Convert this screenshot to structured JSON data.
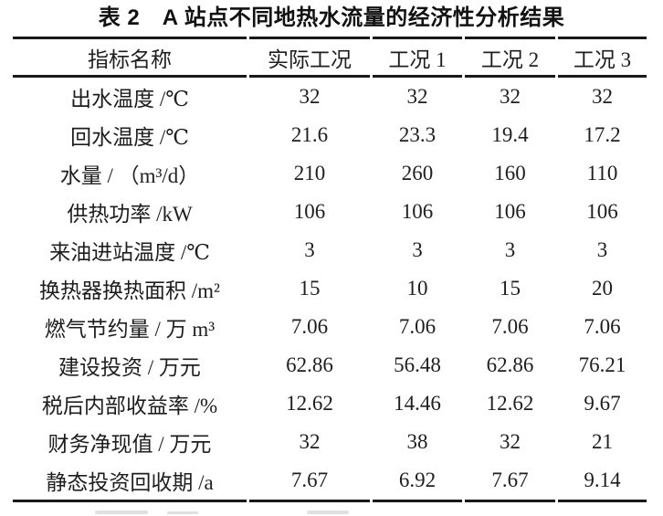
{
  "page": {
    "title": "表 2　A 站点不同地热水流量的经济性分析结果"
  },
  "table": {
    "headers": [
      "指标名称",
      "实际工况",
      "工况 1",
      "工况 2",
      "工况 3"
    ],
    "rows": [
      {
        "label": "出水温度 /℃",
        "values": [
          "32",
          "32",
          "32",
          "32"
        ]
      },
      {
        "label": "回水温度 /℃",
        "values": [
          "21.6",
          "23.3",
          "19.4",
          "17.2"
        ]
      },
      {
        "label": "水量 / （m³/d）",
        "values": [
          "210",
          "260",
          "160",
          "110"
        ]
      },
      {
        "label": "供热功率 /kW",
        "values": [
          "106",
          "106",
          "106",
          "106"
        ]
      },
      {
        "label": "来油进站温度 /℃",
        "values": [
          "3",
          "3",
          "3",
          "3"
        ]
      },
      {
        "label": "换热器换热面积 /m²",
        "values": [
          "15",
          "10",
          "15",
          "20"
        ]
      },
      {
        "label": "燃气节约量 / 万 m³",
        "values": [
          "7.06",
          "7.06",
          "7.06",
          "7.06"
        ]
      },
      {
        "label": "建设投资 / 万元",
        "values": [
          "62.86",
          "56.48",
          "62.86",
          "76.21"
        ]
      },
      {
        "label": "税后内部收益率 /%",
        "values": [
          "12.62",
          "14.46",
          "12.62",
          "9.67"
        ]
      },
      {
        "label": "财务净现值 / 万元",
        "values": [
          "32",
          "38",
          "32",
          "21"
        ]
      },
      {
        "label": "静态投资回收期 /a",
        "values": [
          "7.67",
          "6.92",
          "7.67",
          "9.14"
        ]
      }
    ]
  },
  "colors": {
    "text": "#1e1e1e",
    "rule": "#191919",
    "background": "#ffffff"
  }
}
